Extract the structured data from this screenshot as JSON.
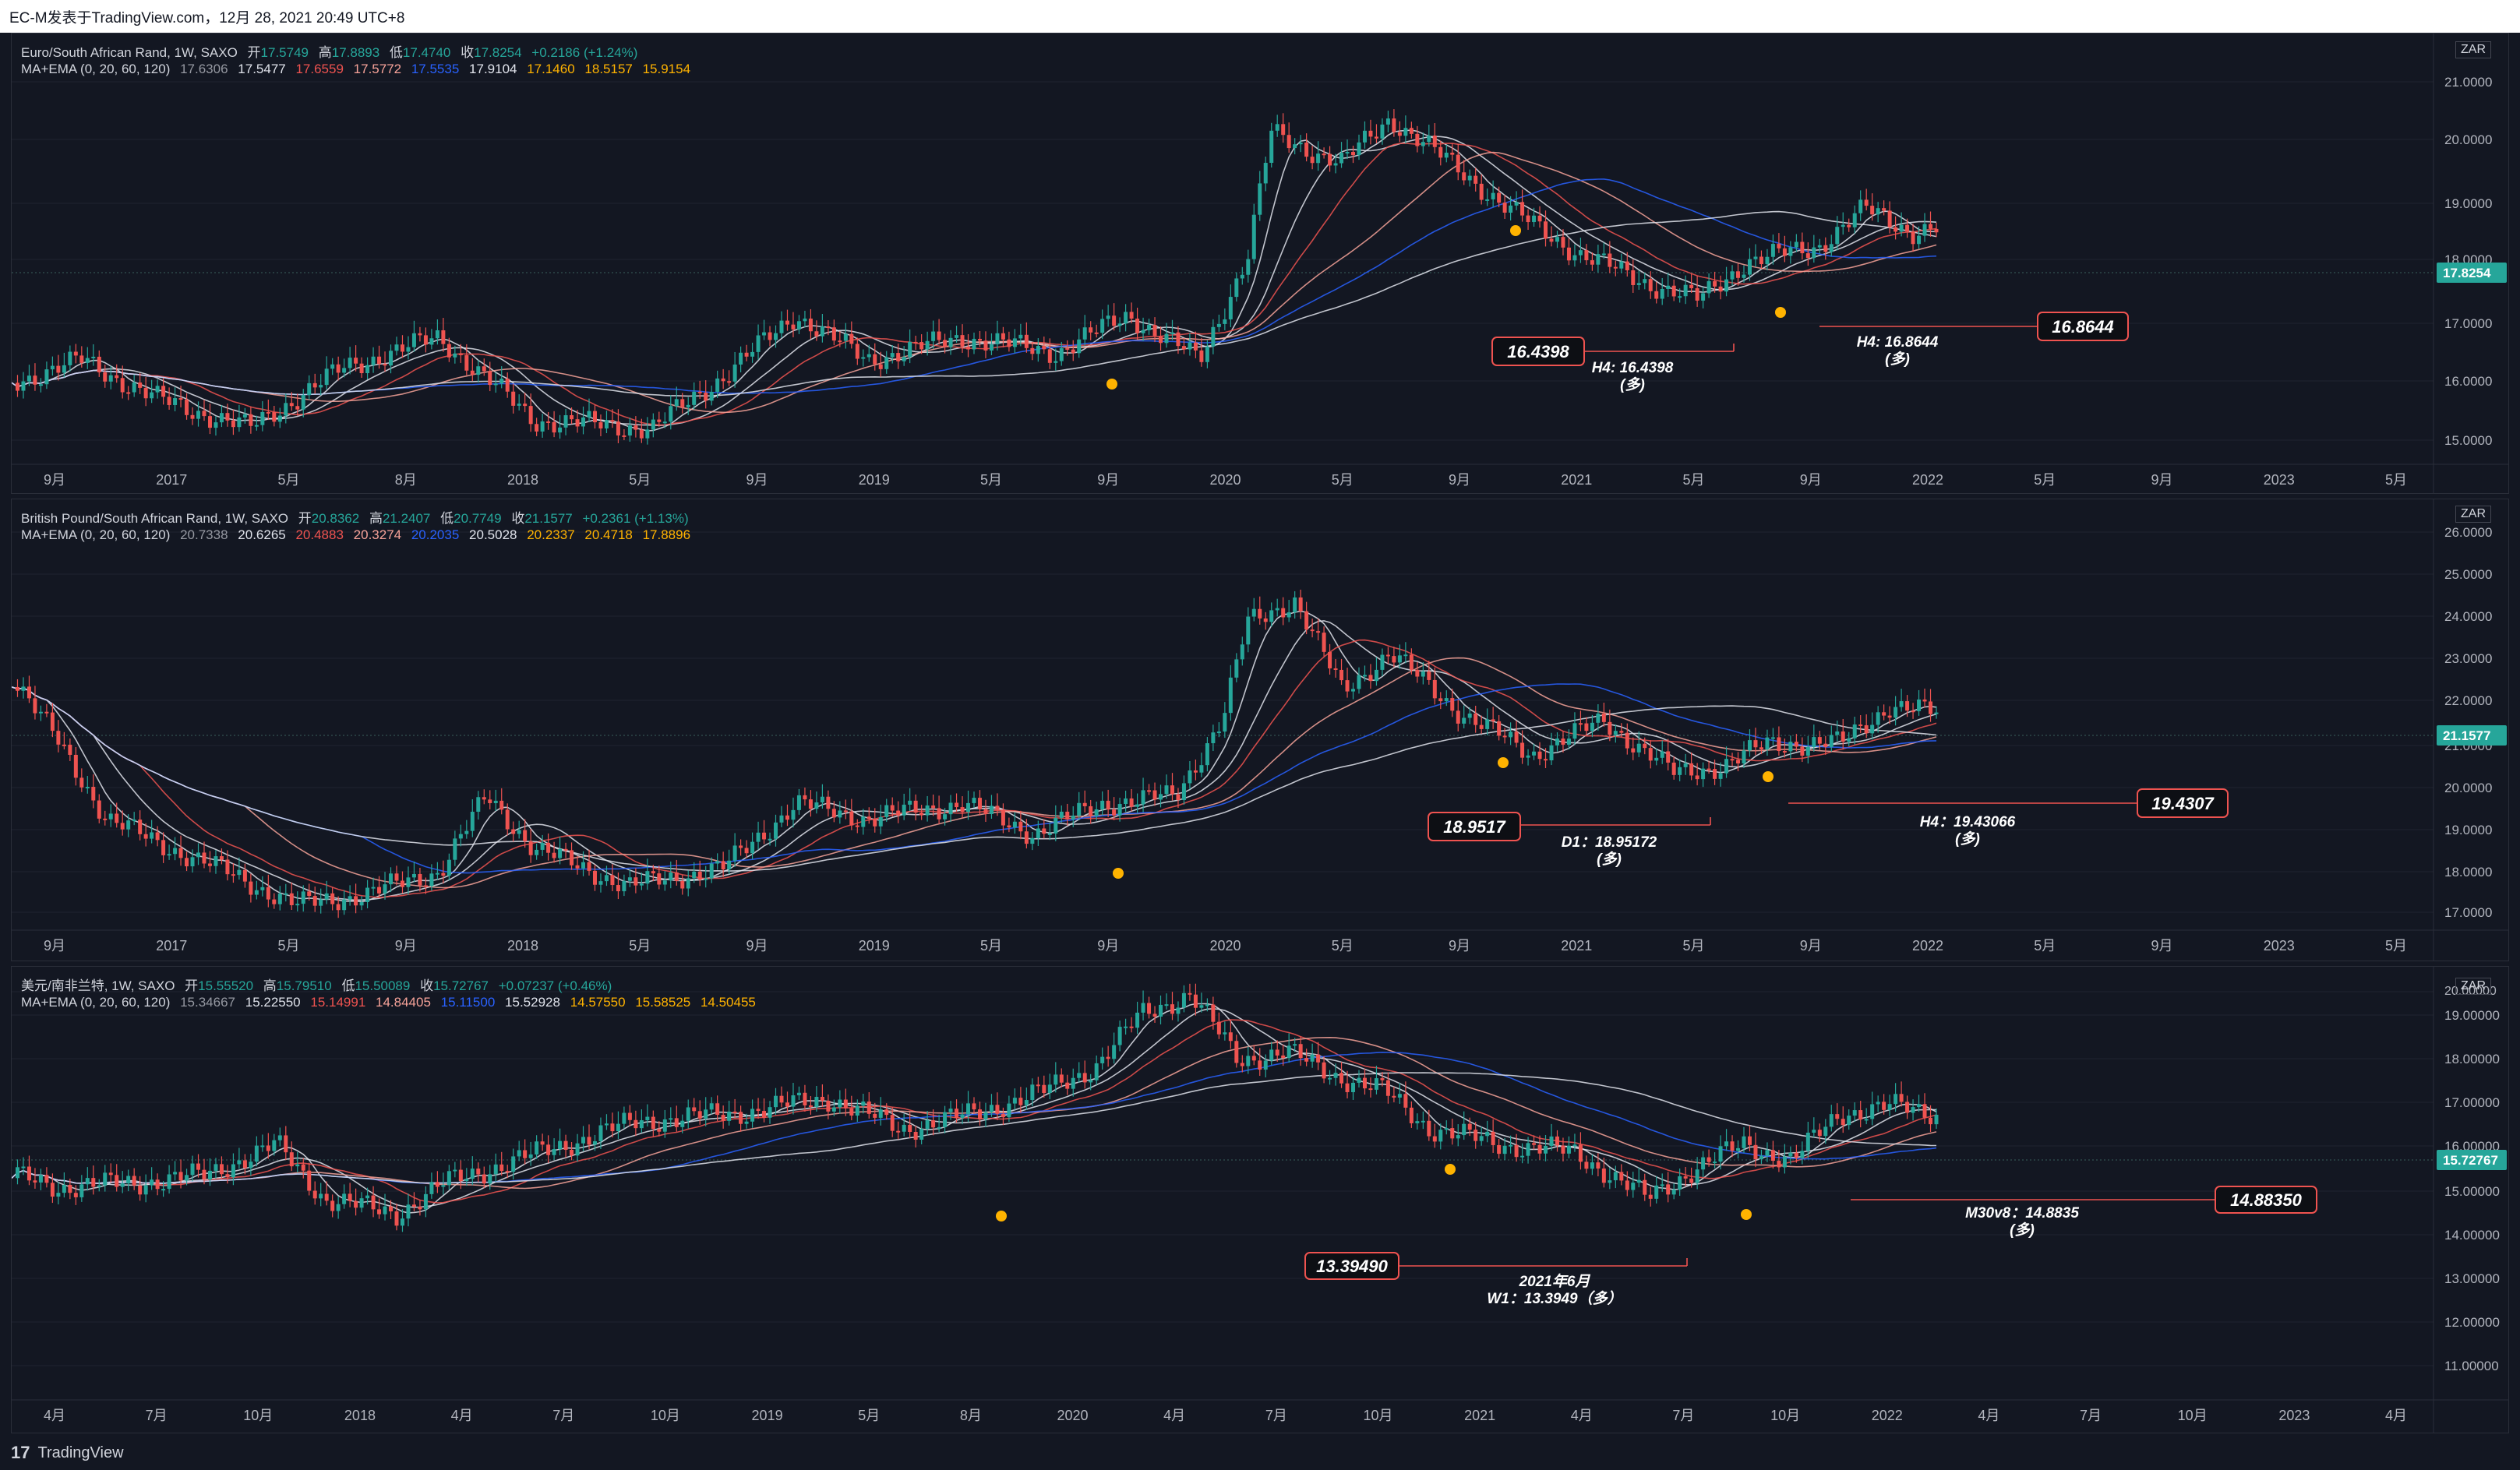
{
  "header": {
    "title": "EC-M发表于TradingView.com，12月 28, 2021 20:49 UTC+8"
  },
  "footer": {
    "brand": "TradingView",
    "logo_text": "17"
  },
  "colors": {
    "bg": "#131722",
    "grid": "#1f2330",
    "up": "#26a69a",
    "down": "#ef5350",
    "ma_white": "#e0e3eb",
    "ma_red": "#ef5350",
    "ma_salmon": "#f7a399",
    "ma_blue": "#2962ff",
    "dot": "#ffb300",
    "badge": "#26a69a"
  },
  "panes": [
    {
      "id": "eurzar",
      "legend": {
        "symbol": "Euro/South African Rand, 1W, SAXO",
        "o_label": "开",
        "o": "17.5749",
        "h_label": "高",
        "h": "17.8893",
        "l_label": "低",
        "l": "17.4740",
        "c_label": "收",
        "c": "17.8254",
        "change": "+0.2186 (+1.24%)",
        "ma_label": "MA+EMA (0, 20, 60, 120)",
        "ma_values": [
          "17.6306",
          "17.5477",
          "17.6559",
          "17.5772",
          "17.5535",
          "17.9104",
          "17.1460",
          "18.5157",
          "15.9154"
        ]
      },
      "currency": "ZAR",
      "price_labels": [
        "21.0000",
        "20.0000",
        "19.0000",
        "18.0000",
        "17.0000",
        "16.0000",
        "15.0000"
      ],
      "last_price": "17.8254",
      "x_labels": [
        "9月",
        "2017",
        "5月",
        "8月",
        "2018",
        "5月",
        "9月",
        "2019",
        "5月",
        "9月",
        "2020",
        "5月",
        "9月",
        "2021",
        "5月",
        "9月",
        "2022",
        "5月",
        "9月",
        "2023",
        "5月"
      ],
      "annotations": [
        {
          "box": "16.4398",
          "text": [
            "H4: 16.4398",
            "(多)"
          ]
        },
        {
          "box": "16.8644",
          "text": [
            "H4: 16.8644",
            "(多)"
          ]
        }
      ]
    },
    {
      "id": "gbpzar",
      "legend": {
        "symbol": "British Pound/South African Rand, 1W, SAXO",
        "o_label": "开",
        "o": "20.8362",
        "h_label": "高",
        "h": "21.2407",
        "l_label": "低",
        "l": "20.7749",
        "c_label": "收",
        "c": "21.1577",
        "change": "+0.2361 (+1.13%)",
        "ma_label": "MA+EMA (0, 20, 60, 120)",
        "ma_values": [
          "20.7338",
          "20.6265",
          "20.4883",
          "20.3274",
          "20.2035",
          "20.5028",
          "20.2337",
          "20.4718",
          "17.8896"
        ]
      },
      "currency": "ZAR",
      "price_labels": [
        "26.0000",
        "25.0000",
        "24.0000",
        "23.0000",
        "22.0000",
        "21.0000",
        "20.0000",
        "19.0000",
        "18.0000",
        "17.0000"
      ],
      "last_price": "21.1577",
      "x_labels": [
        "9月",
        "2017",
        "5月",
        "9月",
        "2018",
        "5月",
        "9月",
        "2019",
        "5月",
        "9月",
        "2020",
        "5月",
        "9月",
        "2021",
        "5月",
        "9月",
        "2022",
        "5月",
        "9月",
        "2023",
        "5月"
      ],
      "annotations": [
        {
          "box": "18.9517",
          "text": [
            "D1：18.95172",
            "(多)"
          ]
        },
        {
          "box": "19.4307",
          "text": [
            "H4：19.43066",
            "(多)"
          ]
        }
      ]
    },
    {
      "id": "usdzar",
      "legend": {
        "symbol": "美元/南非兰特, 1W, SAXO",
        "o_label": "开",
        "o": "15.55520",
        "h_label": "高",
        "h": "15.79510",
        "l_label": "低",
        "l": "15.50089",
        "c_label": "收",
        "c": "15.72767",
        "change": "+0.07237 (+0.46%)",
        "ma_label": "MA+EMA (0, 20, 60, 120)",
        "ma_values": [
          "15.34667",
          "15.22550",
          "15.14991",
          "14.84405",
          "15.11500",
          "15.52928",
          "14.57550",
          "15.58525",
          "14.50455"
        ]
      },
      "currency": "ZAR",
      "top_label": "20.00000",
      "price_labels": [
        "19.00000",
        "18.00000",
        "17.00000",
        "16.00000",
        "15.00000",
        "14.00000",
        "13.00000",
        "12.00000",
        "11.00000"
      ],
      "last_price": "15.72767",
      "x_labels": [
        "4月",
        "7月",
        "10月",
        "2018",
        "4月",
        "7月",
        "10月",
        "2019",
        "5月",
        "8月",
        "2020",
        "4月",
        "7月",
        "10月",
        "2021",
        "4月",
        "7月",
        "10月",
        "2022",
        "4月",
        "7月",
        "10月",
        "2023",
        "4月"
      ],
      "annotations": [
        {
          "box": "13.39490",
          "text": [
            "2021年6月",
            "W1：13.3949（多）"
          ]
        },
        {
          "box": "14.88350",
          "text": [
            "M30v8：14.8835",
            "(多)"
          ]
        }
      ]
    }
  ]
}
